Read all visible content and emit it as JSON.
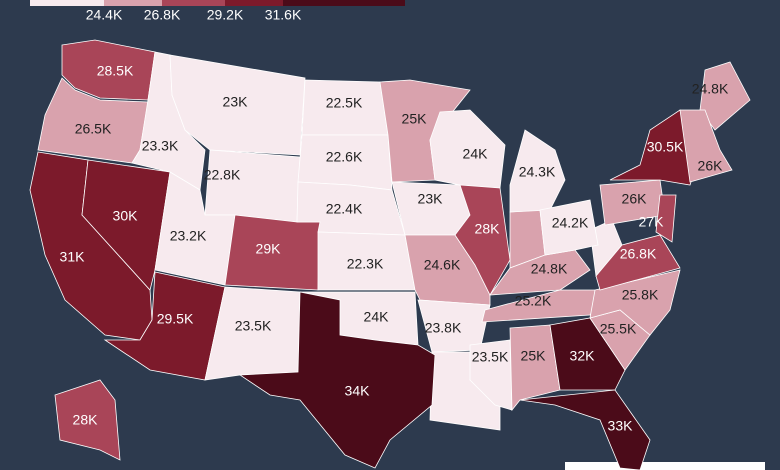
{
  "chart_data": {
    "type": "choropleth",
    "legend": {
      "ticks": [
        {
          "value": 24.4,
          "label": "24.4K"
        },
        {
          "value": 26.8,
          "label": "26.8K"
        },
        {
          "value": 29.2,
          "label": "29.2K"
        },
        {
          "value": 31.6,
          "label": "31.6K"
        }
      ],
      "colors": [
        "#f7eaee",
        "#d9a2ad",
        "#a94558",
        "#7c1a2b",
        "#4b0b19"
      ]
    },
    "values": [
      28.5,
      26.5,
      31,
      30,
      23.3,
      23,
      22.8,
      23.2,
      29.5,
      29,
      23.5,
      22.5,
      22.6,
      22.4,
      22.3,
      24,
      34,
      25,
      23,
      24.6,
      23.8,
      23.5,
      24,
      28,
      24.3,
      24.8,
      24.2,
      25.2,
      25,
      32,
      33,
      25.5,
      25.8,
      26.8,
      26,
      30.5,
      24.8,
      26,
      27,
      28
    ],
    "value_labels": [
      "28.5K",
      "26.5K",
      "31K",
      "30K",
      "23.3K",
      "23K",
      "22.8K",
      "23.2K",
      "29.5K",
      "29K",
      "23.5K",
      "22.5K",
      "22.6K",
      "22.4K",
      "22.3K",
      "24K",
      "34K",
      "25K",
      "23K",
      "24.6K",
      "23.8K",
      "23.5K",
      "24K",
      "28K",
      "24.3K",
      "24.8K",
      "24.2K",
      "25.2K",
      "25K",
      "32K",
      "33K",
      "25.5K",
      "25.8K",
      "26.8K",
      "26K",
      "30.5K",
      "24.8K",
      "26K",
      "27K",
      "28K"
    ]
  }
}
